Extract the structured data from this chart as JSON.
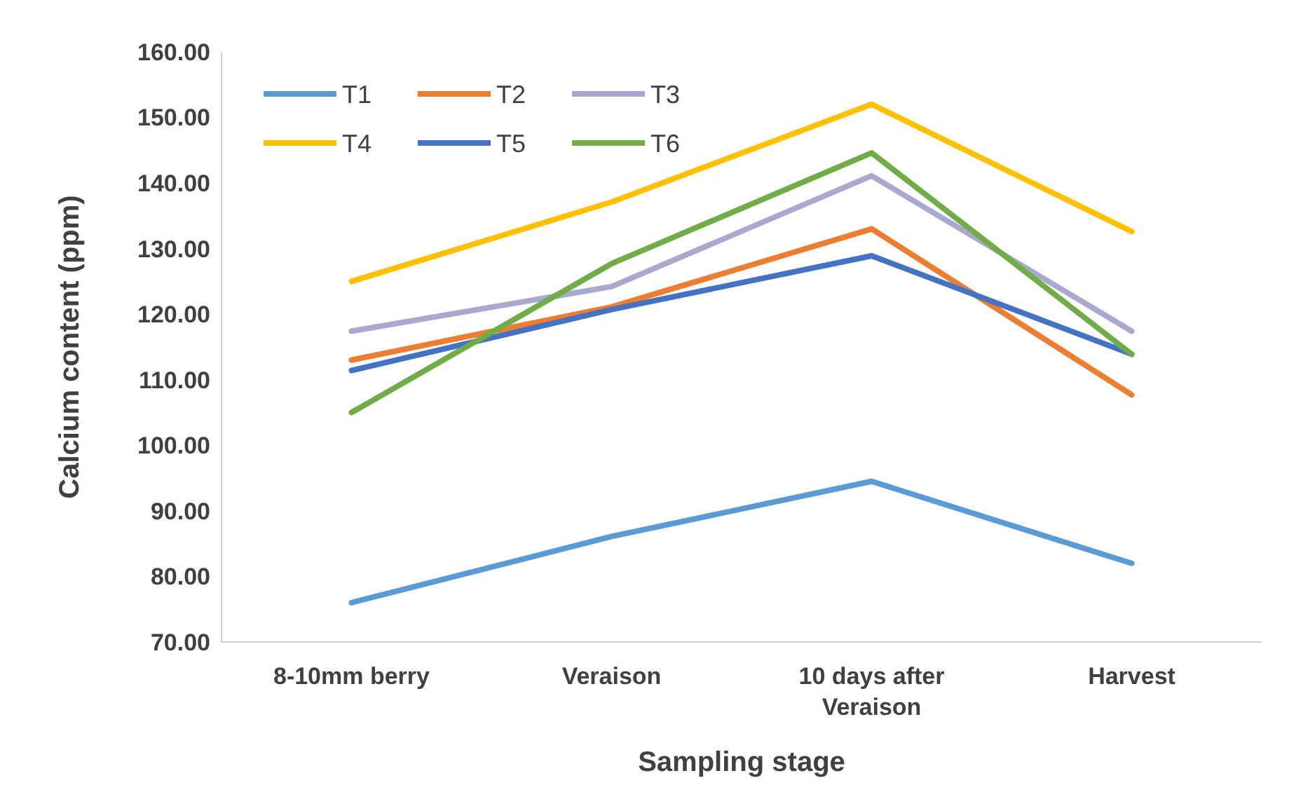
{
  "chart_data": {
    "type": "line",
    "xlabel": "Sampling stage",
    "ylabel": "Calcium content (ppm)",
    "categories": [
      "8-10mm berry",
      "Veraison",
      "10 days after Veraison",
      "Harvest"
    ],
    "ylim": [
      70,
      160
    ],
    "yticks": [
      {
        "value": 70,
        "label": "70.00"
      },
      {
        "value": 80,
        "label": "80.00"
      },
      {
        "value": 90,
        "label": "90.00"
      },
      {
        "value": 100,
        "label": "100.00"
      },
      {
        "value": 110,
        "label": "110.00"
      },
      {
        "value": 120,
        "label": "120.00"
      },
      {
        "value": 130,
        "label": "130.00"
      },
      {
        "value": 140,
        "label": "140.00"
      },
      {
        "value": 150,
        "label": "150.00"
      },
      {
        "value": 160,
        "label": "160.00"
      }
    ],
    "grid": false,
    "legend": "top left",
    "marker": "none",
    "line_style": "solid",
    "series": [
      {
        "name": "T1",
        "color": "#5b9bd5",
        "values": [
          76.0,
          86.1,
          94.5,
          82.0
        ]
      },
      {
        "name": "T2",
        "color": "#ed7d31",
        "values": [
          113.0,
          121.1,
          133.0,
          107.7
        ]
      },
      {
        "name": "T3",
        "color": "#a9a9cf",
        "values": [
          117.4,
          124.2,
          141.1,
          117.4
        ]
      },
      {
        "name": "T4",
        "color": "#ffc000",
        "values": [
          125.0,
          137.1,
          152.0,
          132.6
        ]
      },
      {
        "name": "T5",
        "color": "#4472c4",
        "values": [
          111.4,
          120.7,
          128.9,
          113.9
        ]
      },
      {
        "name": "T6",
        "color": "#70ad47",
        "values": [
          105.0,
          127.7,
          144.6,
          113.9
        ]
      }
    ]
  }
}
